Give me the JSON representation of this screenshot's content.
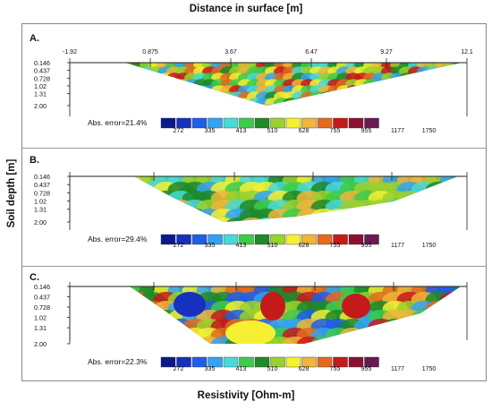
{
  "title": "Distance in surface [m]",
  "xlabel": "Resistivity [Ohm-m]",
  "ylabel": "Soil depth [m]",
  "chart_data": {
    "type": "heatmap",
    "x_ticks": [
      "-1.92",
      "0.875",
      "3.67",
      "6.47",
      "9.27",
      "12.1"
    ],
    "y_ticks": [
      "0.146",
      "0.437",
      "0.728",
      "1.02",
      "1.31",
      "2.00"
    ],
    "color_scale": {
      "labels": [
        "272",
        "335",
        "413",
        "510",
        "628",
        "755",
        "955",
        "1177",
        "1750"
      ],
      "colors": [
        "#0a1a8c",
        "#1630c0",
        "#1e5ee8",
        "#33a3f0",
        "#49d9d6",
        "#3ecb4a",
        "#1e8a2a",
        "#9ad12e",
        "#f5f032",
        "#f0b53a",
        "#e36a1e",
        "#c51a1a",
        "#8a1230",
        "#6a1a50"
      ]
    },
    "panels": [
      {
        "label": "A.",
        "error": "Abs. error=21.4%"
      },
      {
        "label": "B.",
        "error": "Abs. error=29.4%"
      },
      {
        "label": "C.",
        "error": "Abs. error=22.3%"
      }
    ]
  }
}
